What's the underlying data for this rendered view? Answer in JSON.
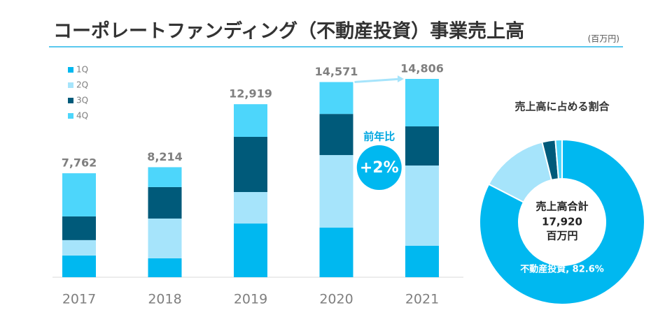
{
  "title": "コーポレートファンディング（不動産投資）事業売上高",
  "unit": "(百万円)",
  "chart_data": [
    {
      "type": "stacked-bar",
      "categories": [
        "2017",
        "2018",
        "2019",
        "2020",
        "2021"
      ],
      "series": [
        {
          "name": "1Q",
          "color": "#00b8f0",
          "values": [
            1620,
            1410,
            4010,
            3700,
            2350
          ]
        },
        {
          "name": "2Q",
          "color": "#a6e4fb",
          "values": [
            1150,
            2970,
            2350,
            5420,
            5990
          ]
        },
        {
          "name": "3Q",
          "color": "#005a7a",
          "values": [
            1770,
            2350,
            4120,
            3070,
            2920
          ]
        },
        {
          "name": "4Q",
          "color": "#4dd6fb",
          "values": [
            3222,
            1484,
            2439,
            2381,
            3546
          ]
        }
      ],
      "totals": [
        7762,
        8214,
        12919,
        14571,
        14806
      ],
      "total_labels": [
        "7,762",
        "8,214",
        "12,919",
        "14,571",
        "14,806"
      ],
      "annotation_title": "前年比",
      "annotation": "+2%"
    },
    {
      "type": "donut",
      "title": "売上高に占める割合",
      "values": [
        82.6,
        13.5,
        2.6,
        1.3
      ],
      "colors": [
        "#00b8f0",
        "#a6e4fb",
        "#005a7a",
        "#4dd6fb"
      ],
      "value_labels": [
        "不動産投資, 82.6%",
        null,
        null,
        null
      ],
      "center_title": "売上高合計",
      "center_value": "17,920",
      "center_unit": "百万円"
    }
  ]
}
